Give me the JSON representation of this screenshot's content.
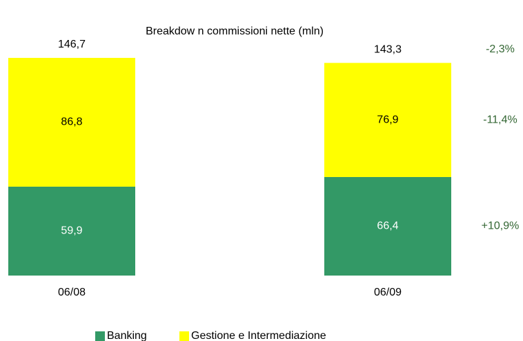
{
  "chart_data": {
    "type": "stacked_bar",
    "title": "Breakdow n commissioni nette (mln)",
    "categories": [
      "06/08",
      "06/09"
    ],
    "series": [
      {
        "name": "Banking",
        "color": "#339966",
        "label_color": "#ffffff",
        "values": [
          59.9,
          66.4
        ],
        "value_labels": [
          "59,9",
          "66,4"
        ]
      },
      {
        "name": "Gestione e Intermediazione",
        "color": "#ffff00",
        "label_color": "#000000",
        "values": [
          86.8,
          76.9
        ],
        "value_labels": [
          "86,8",
          "76,9"
        ]
      }
    ],
    "totals": [
      146.7,
      143.3
    ],
    "total_labels": [
      "146,7",
      "143,3"
    ],
    "change_labels": [
      "-2,3%",
      "-11,4%",
      "+10,9%"
    ],
    "change_color": "#336633",
    "legend": "bottom"
  }
}
